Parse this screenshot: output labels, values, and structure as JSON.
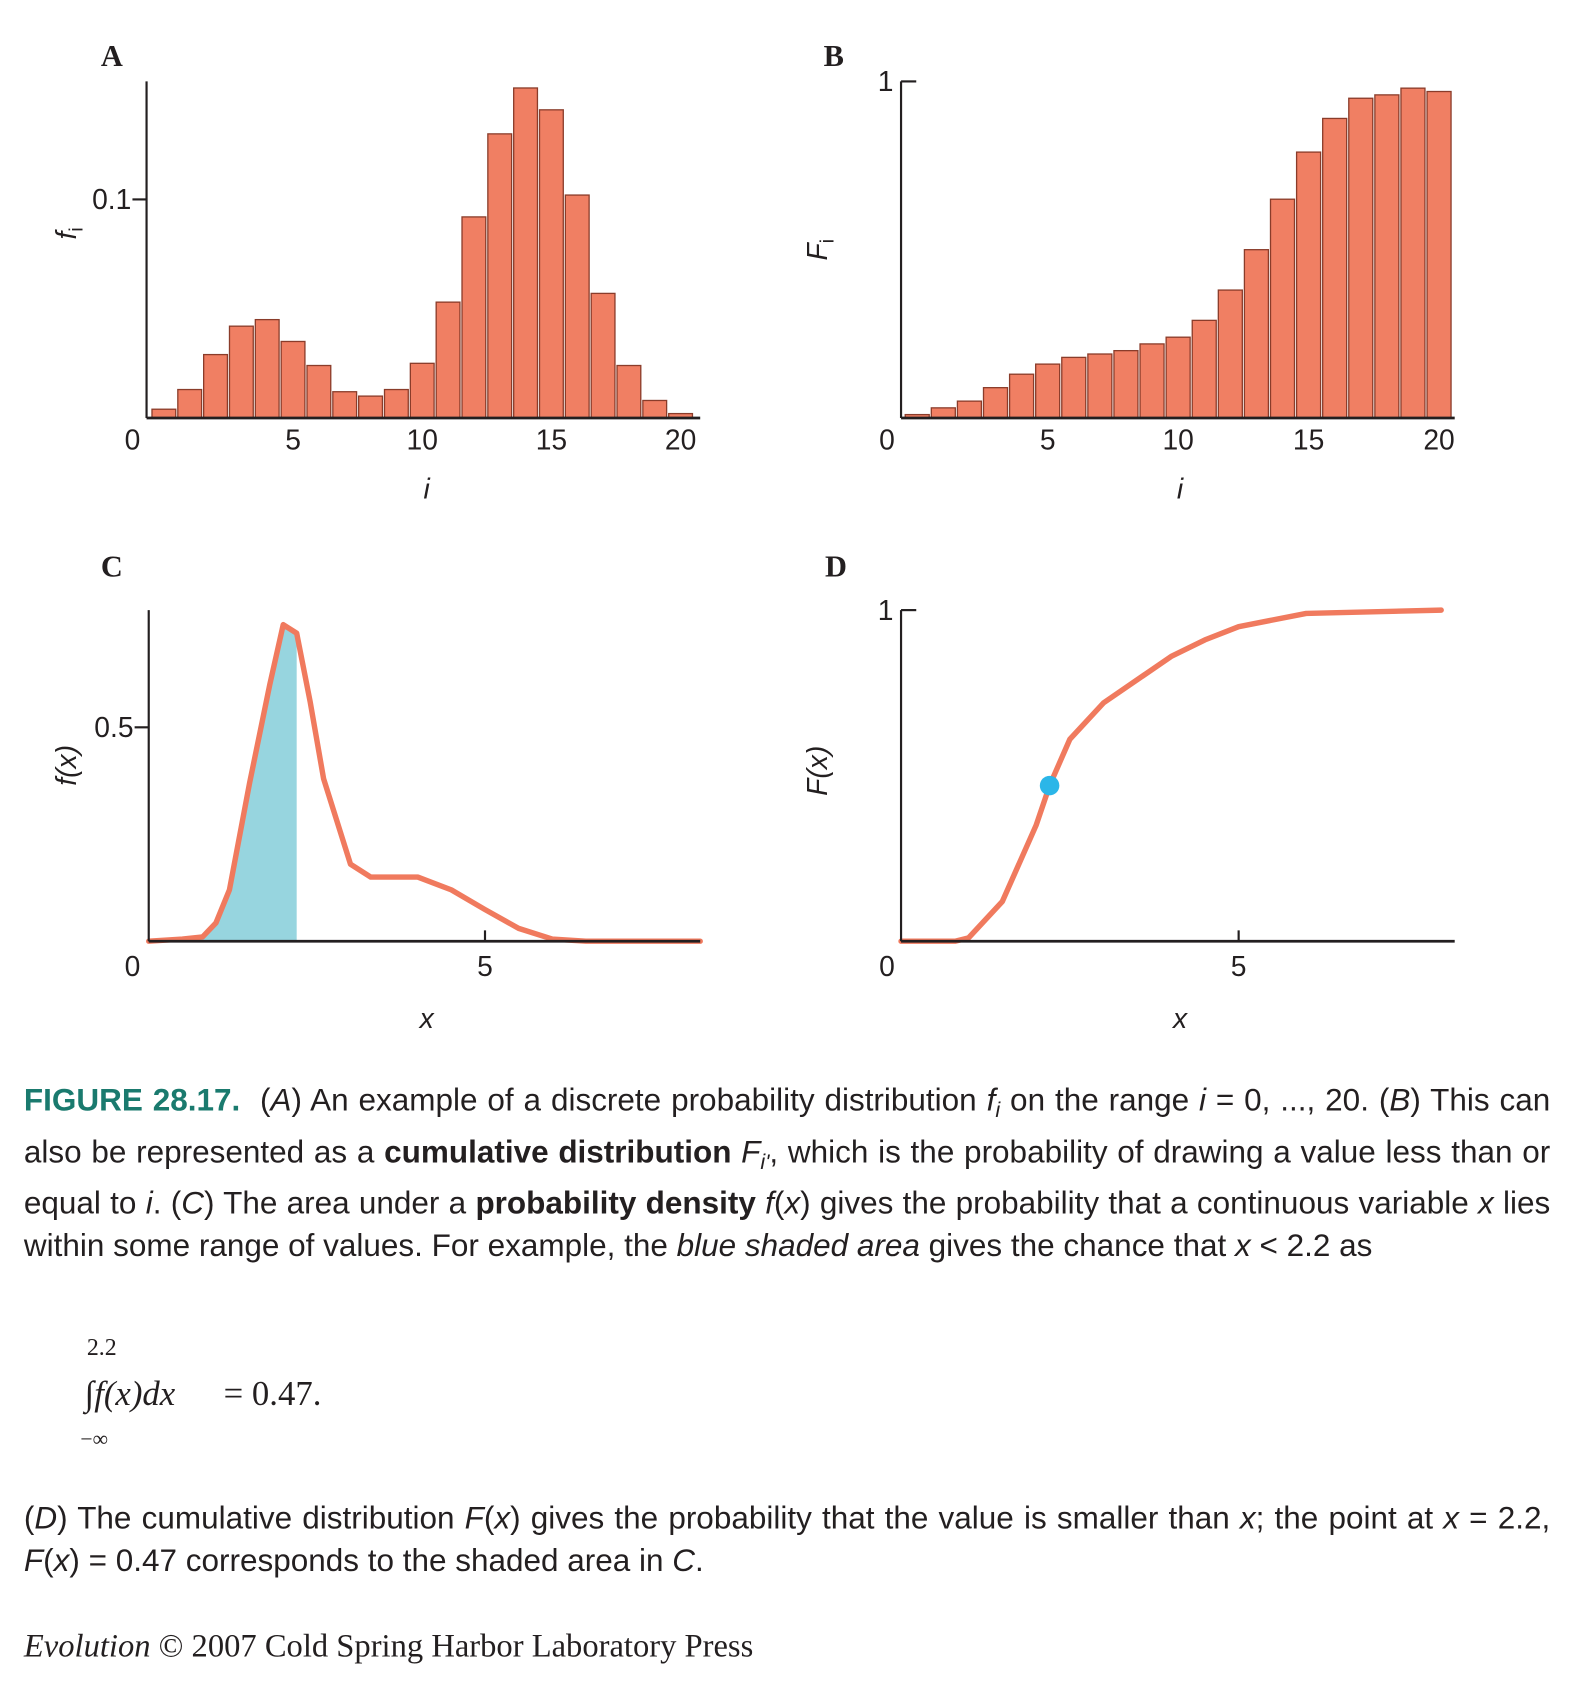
{
  "chart_data": [
    {
      "type": "bar",
      "panel": "A",
      "ylabel": "f",
      "ylabel_sub": "i",
      "xlabel": "i",
      "origin_label": "0",
      "x": [
        0,
        1,
        2,
        3,
        4,
        5,
        6,
        7,
        8,
        9,
        10,
        11,
        12,
        13,
        14,
        15,
        16,
        17,
        18,
        19,
        20
      ],
      "values": [
        0.004,
        0.013,
        0.029,
        0.042,
        0.045,
        0.035,
        0.024,
        0.012,
        0.01,
        0.013,
        0.025,
        0.053,
        0.092,
        0.13,
        0.151,
        0.141,
        0.102,
        0.057,
        0.024,
        0.008,
        0.002
      ],
      "color": "#f07f63",
      "xlim": [
        -0.67,
        20.76
      ],
      "ylim": [
        0,
        0.154
      ],
      "xticks": [
        5,
        10,
        15,
        20
      ],
      "yticks": [
        0.1
      ]
    },
    {
      "type": "bar",
      "panel": "B",
      "ylabel": "F",
      "ylabel_sub": "i",
      "xlabel": "i",
      "origin_label": "0",
      "x": [
        0,
        1,
        2,
        3,
        4,
        5,
        6,
        7,
        8,
        9,
        10,
        11,
        12,
        13,
        14,
        15,
        16,
        17,
        18,
        19,
        20
      ],
      "values": [
        0.01,
        0.03,
        0.05,
        0.09,
        0.13,
        0.16,
        0.18,
        0.19,
        0.2,
        0.22,
        0.24,
        0.29,
        0.38,
        0.5,
        0.65,
        0.79,
        0.89,
        0.95,
        0.96,
        0.98,
        0.97
      ],
      "color": "#f07f63",
      "xlim": [
        -0.62,
        20.6
      ],
      "ylim": [
        0,
        1
      ],
      "xticks": [
        5,
        10,
        15,
        20
      ],
      "yticks": [
        1
      ]
    },
    {
      "type": "line",
      "panel": "C",
      "ylabel": "f(x)",
      "xlabel": "x",
      "origin_label": "0",
      "x": [
        0,
        0.5,
        0.8,
        1,
        1.2,
        1.5,
        1.8,
        2,
        2.2,
        2.4,
        2.6,
        3,
        3.3,
        3.6,
        4,
        4.5,
        5,
        5.5,
        6,
        6.5,
        7,
        8.2
      ],
      "values": [
        0,
        0.005,
        0.01,
        0.043,
        0.12,
        0.37,
        0.6,
        0.74,
        0.72,
        0.56,
        0.38,
        0.18,
        0.15,
        0.15,
        0.15,
        0.12,
        0.074,
        0.03,
        0.005,
        0,
        0,
        0
      ],
      "color": "#f07a5e",
      "shade_to": 2.2,
      "shade_color": "#97d5df",
      "xlim": [
        0,
        8.2
      ],
      "ylim": [
        0,
        0.774
      ],
      "xticks": [
        5
      ],
      "yticks": [
        0.5
      ]
    },
    {
      "type": "line",
      "panel": "D",
      "ylabel": "F(x)",
      "xlabel": "x",
      "origin_label": "0",
      "x": [
        0,
        0.8,
        1,
        1.5,
        2,
        2.2,
        2.5,
        3,
        4,
        4.5,
        5,
        6,
        8
      ],
      "values": [
        0,
        0,
        0.01,
        0.12,
        0.35,
        0.47,
        0.61,
        0.72,
        0.86,
        0.91,
        0.95,
        0.99,
        1
      ],
      "color": "#f07a5e",
      "point": {
        "x": 2.2,
        "y": 0.47,
        "color": "#2bb6e8"
      },
      "xlim": [
        0,
        8.2
      ],
      "ylim": [
        0,
        1
      ],
      "xticks": [
        5
      ],
      "yticks": [
        1
      ]
    }
  ],
  "caption": {
    "label": "FIGURE 28.17.",
    "paragraph1": [
      {
        "t": "("
      },
      {
        "t": "A",
        "s": "i"
      },
      {
        "t": ") An example of a discrete probability distribution "
      },
      {
        "t": "f",
        "s": "i"
      },
      {
        "t": "i",
        "s": "sub"
      },
      {
        "t": " on the range "
      },
      {
        "t": "i",
        "s": "i"
      },
      {
        "t": " = 0, ..., 20. ("
      },
      {
        "t": "B",
        "s": "i"
      },
      {
        "t": ") This can also be represented as a "
      },
      {
        "t": "cumulative distribution",
        "s": "b"
      },
      {
        "t": " "
      },
      {
        "t": "F",
        "s": "i"
      },
      {
        "t": "i'",
        "s": "sub"
      },
      {
        "t": ", which is the probability of drawing a value less than or equal to "
      },
      {
        "t": "i",
        "s": "i"
      },
      {
        "t": ". ("
      },
      {
        "t": "C",
        "s": "i"
      },
      {
        "t": ") The area under a "
      },
      {
        "t": "probability density",
        "s": "b"
      },
      {
        "t": " "
      },
      {
        "t": "f",
        "s": "i"
      },
      {
        "t": "("
      },
      {
        "t": "x",
        "s": "i"
      },
      {
        "t": ") gives the probability that a continuous variable "
      },
      {
        "t": "x",
        "s": "i"
      },
      {
        "t": " lies within some range of values. For example, the "
      },
      {
        "t": "blue shaded area",
        "s": "i"
      },
      {
        "t": " gives the chance that "
      },
      {
        "t": "x",
        "s": "i"
      },
      {
        "t": " < 2.2 as"
      }
    ],
    "equation": {
      "upper": "2.2",
      "body": "∫f(x)dx",
      "result": "= 0.47.",
      "lower": "−∞"
    },
    "paragraph2": [
      {
        "t": "("
      },
      {
        "t": "D",
        "s": "i"
      },
      {
        "t": ") The cumulative distribution "
      },
      {
        "t": "F",
        "s": "i"
      },
      {
        "t": "("
      },
      {
        "t": "x",
        "s": "i"
      },
      {
        "t": ") gives the probability that the value is smaller than "
      },
      {
        "t": "x",
        "s": "i"
      },
      {
        "t": "; the point at "
      },
      {
        "t": "x",
        "s": "i"
      },
      {
        "t": " = 2.2, "
      },
      {
        "t": "F",
        "s": "i"
      },
      {
        "t": "("
      },
      {
        "t": "x",
        "s": "i"
      },
      {
        "t": ") = 0.47 corresponds to the shaded area in "
      },
      {
        "t": "C",
        "s": "i"
      },
      {
        "t": "."
      }
    ]
  },
  "footer": {
    "book": "Evolution",
    "rest": " © 2007 Cold Spring Harbor Laboratory Press"
  }
}
